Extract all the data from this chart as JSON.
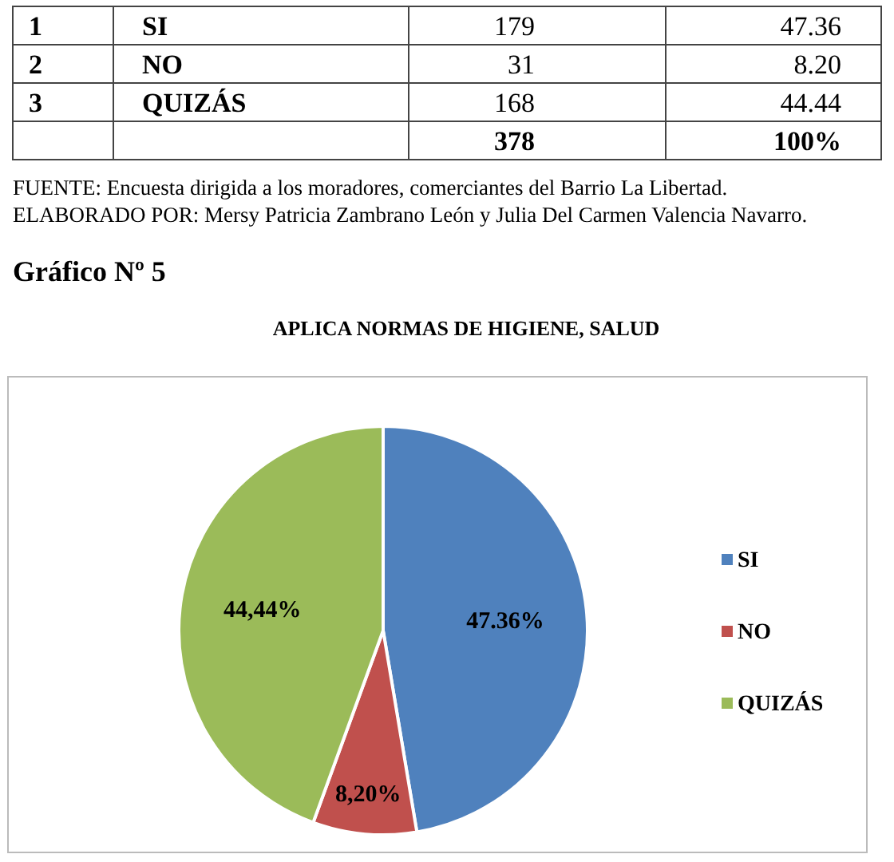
{
  "chart_data": [
    {
      "type": "other",
      "annotations": [
        "1",
        "SI",
        "179",
        "47.36",
        "2",
        "NO",
        "31",
        "8.20",
        "3",
        "QUIZÁS",
        "168",
        "44.44",
        "378",
        "100%"
      ]
    },
    {
      "type": "pie",
      "title": "APLICA NORMAS DE HIGIENE, SALUD",
      "subtitle": "Gráfico Nº 5",
      "annotations": [
        "FUENTE: Encuesta dirigida a los moradores, comerciantes del Barrio La Libertad.",
        "ELABORADO POR: Mersy Patricia Zambrano León y Julia Del Carmen Valencia Navarro."
      ],
      "categories": [
        "SI",
        "NO",
        "QUIZÁS"
      ],
      "values": [
        47.36,
        8.2,
        44.44
      ],
      "colors": [
        "#4f81bd",
        "#c0504d",
        "#9bbb59"
      ],
      "value_labels": [
        "47.36%",
        "8,20%",
        "44,44%"
      ],
      "legend": "right"
    }
  ]
}
